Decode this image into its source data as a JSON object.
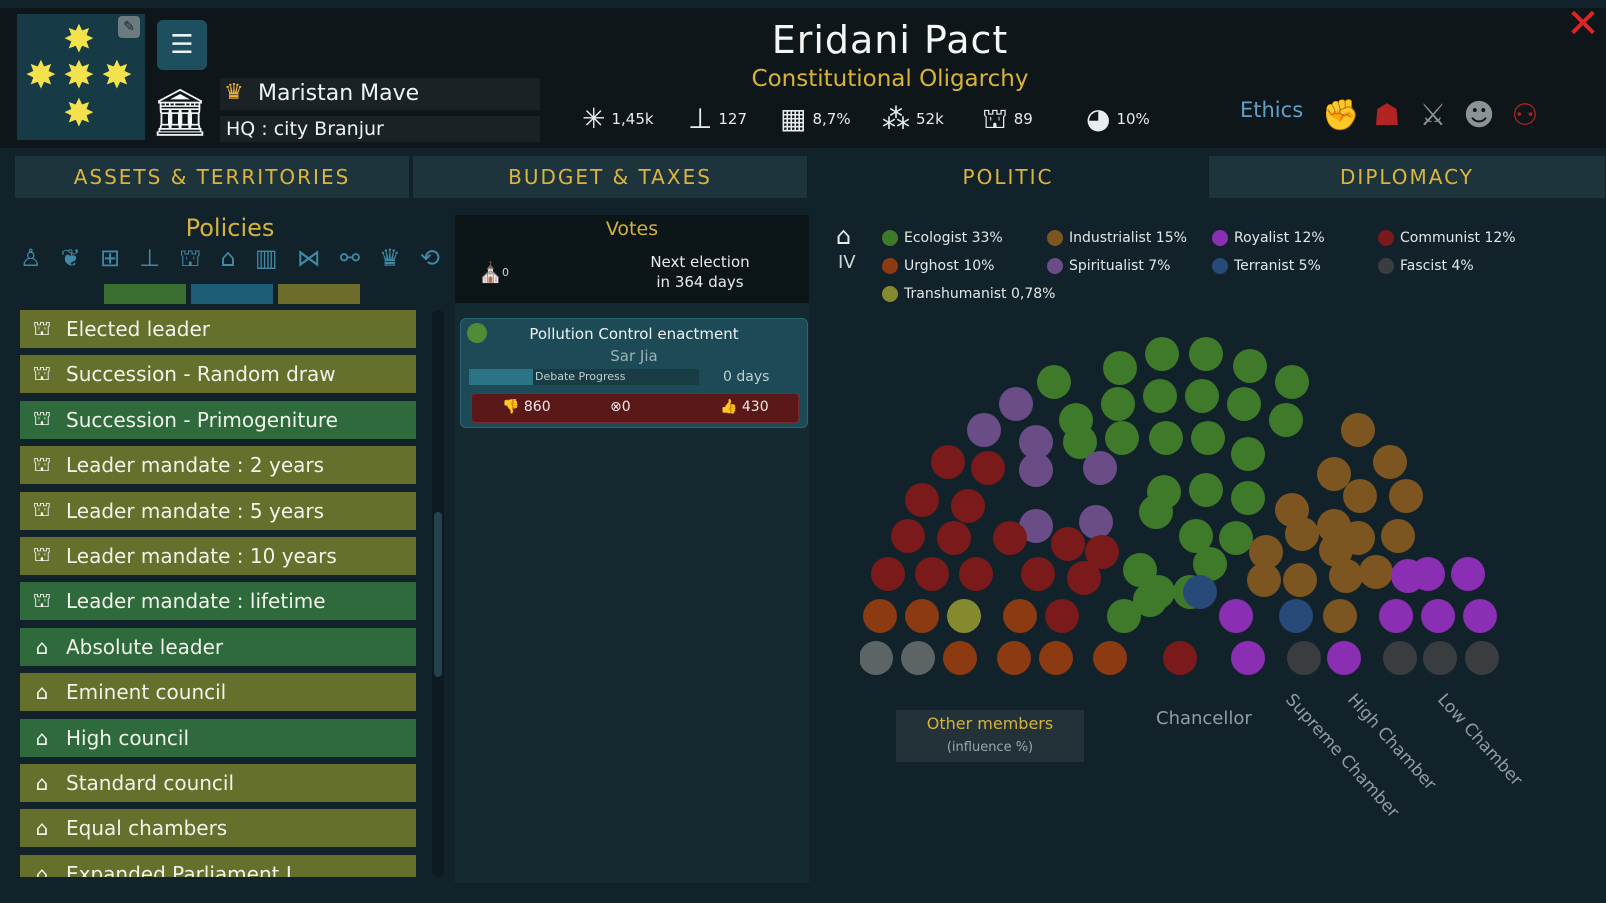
{
  "header": {
    "faction_name": "Eridani Pact",
    "government_type": "Constitutional Oligarchy",
    "leader_name": "Maristan Mave",
    "hq": "HQ : city Branjur",
    "stats": [
      {
        "icon": "network-icon",
        "value": "1,45k"
      },
      {
        "icon": "stamp-icon",
        "value": "127"
      },
      {
        "icon": "city-icon",
        "value": "8,7%"
      },
      {
        "icon": "population-icon",
        "value": "52k"
      },
      {
        "icon": "hierarchy-icon",
        "value": "89"
      },
      {
        "icon": "pollution-icon",
        "value": "10%"
      }
    ],
    "ethics_label": "Ethics",
    "ethics_icons": [
      "fist-icon",
      "military-cap-icon",
      "crossed-swords-icon",
      "worker-icon",
      "crowd-icon"
    ],
    "ethics_color": "#b02424"
  },
  "tabs": [
    {
      "label": "ASSETS & TERRITORIES"
    },
    {
      "label": "BUDGET & TAXES"
    },
    {
      "label": "POLITIC",
      "active": true
    },
    {
      "label": "DIPLOMACY"
    }
  ],
  "policies": {
    "title": "Policies",
    "category_icons": [
      "person-icon",
      "wreath-icon",
      "gift-icon",
      "stamp-icon",
      "hierarchy-icon",
      "institution-icon",
      "building-icon",
      "network-icon",
      "handshake-icon",
      "crown-icon",
      "recycle-icon"
    ],
    "category_colors": [
      "#3c6e32",
      "#1d5e76",
      "#6c6d2a"
    ],
    "items": [
      {
        "label": "Elected leader",
        "icon": "hierarchy-icon",
        "color": "olive"
      },
      {
        "label": "Succession - Random draw",
        "icon": "hierarchy-icon",
        "color": "olive"
      },
      {
        "label": "Succession - Primogeniture",
        "icon": "hierarchy-icon",
        "color": "green"
      },
      {
        "label": "Leader mandate : 2 years",
        "icon": "hierarchy-icon",
        "color": "olive"
      },
      {
        "label": "Leader mandate : 5 years",
        "icon": "hierarchy-icon",
        "color": "olive"
      },
      {
        "label": "Leader mandate : 10 years",
        "icon": "hierarchy-icon",
        "color": "olive"
      },
      {
        "label": "Leader mandate : lifetime",
        "icon": "hierarchy-icon",
        "color": "green"
      },
      {
        "label": "Absolute leader",
        "icon": "institution-icon",
        "color": "green"
      },
      {
        "label": "Eminent council",
        "icon": "institution-icon",
        "color": "olive"
      },
      {
        "label": "High council",
        "icon": "institution-icon",
        "color": "green"
      },
      {
        "label": "Standard council",
        "icon": "institution-icon",
        "color": "olive"
      },
      {
        "label": "Equal chambers",
        "icon": "institution-icon",
        "color": "olive"
      },
      {
        "label": "Expanded Parliament I",
        "icon": "institution-icon",
        "color": "olive"
      }
    ]
  },
  "votes": {
    "title": "Votes",
    "count": "0",
    "next_election_line1": "Next election",
    "next_election_line2": "in 364 days",
    "proposal": {
      "name": "Pollution Control enactment",
      "author": "Sar Jia",
      "debate_label": "Debate Progress",
      "debate_progress": 0.28,
      "days": "0 days",
      "against": "860",
      "abstain": "0",
      "for": "430"
    }
  },
  "parliament": {
    "level": "IV",
    "parties": [
      {
        "name": "Ecologist 33%",
        "color": "#3f7a2a"
      },
      {
        "name": "Industrialist 15%",
        "color": "#7d5520"
      },
      {
        "name": "Royalist 12%",
        "color": "#8a2fb3"
      },
      {
        "name": "Communist 12%",
        "color": "#7a1a1a"
      },
      {
        "name": "Urghost 10%",
        "color": "#8b3a12"
      },
      {
        "name": "Spiritualist 7%",
        "color": "#6a4d86"
      },
      {
        "name": "Terranist 5%",
        "color": "#284a78"
      },
      {
        "name": "Fascist 4%",
        "color": "#3a3d40"
      },
      {
        "name": "Transhumanist 0,78%",
        "color": "#868a2e"
      }
    ],
    "other_members_title": "Other members",
    "other_members_sub": "(influence %)",
    "chamber_labels": [
      "Chancellor",
      "Supreme Chamber",
      "High Chamber",
      "Low Chamber"
    ]
  }
}
